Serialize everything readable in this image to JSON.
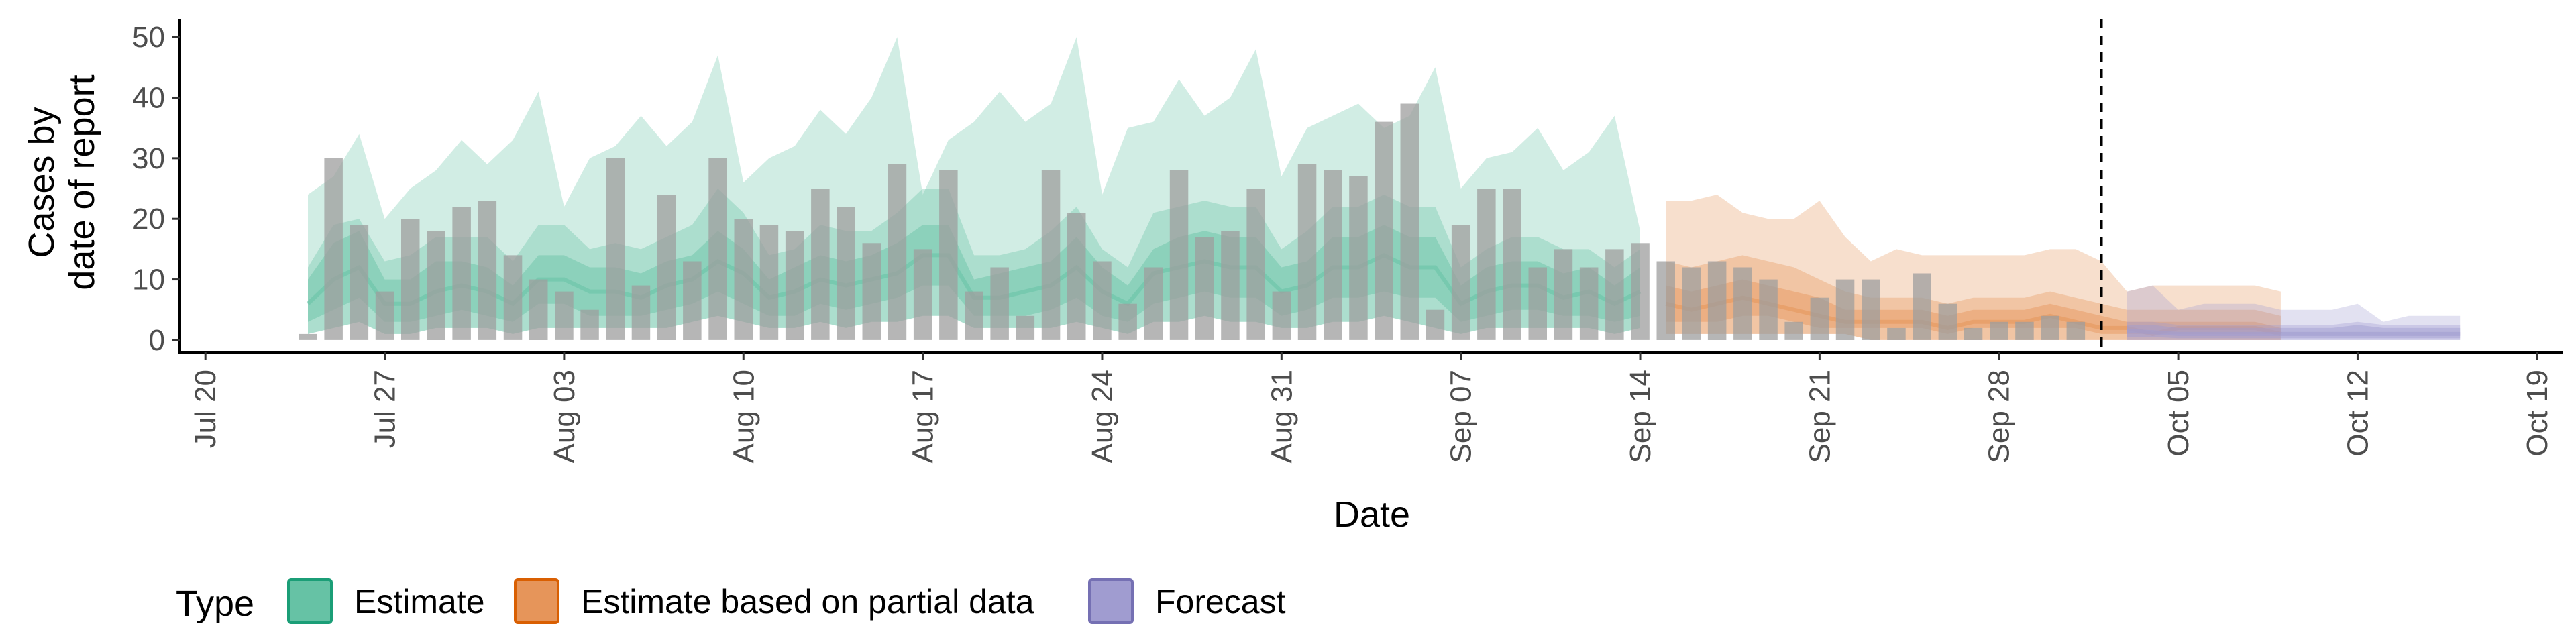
{
  "chart_data": {
    "type": "area",
    "title": "",
    "xlabel": "Date",
    "ylabel_lines": [
      "Cases by",
      "date of report"
    ],
    "x_range": [
      "2020-07-19",
      "2020-10-20"
    ],
    "ylim": [
      -2,
      53
    ],
    "y_ticks": [
      0,
      10,
      20,
      30,
      40,
      50
    ],
    "x_ticks": [
      {
        "date": "2020-07-20",
        "label": "Jul 20"
      },
      {
        "date": "2020-07-27",
        "label": "Jul 27"
      },
      {
        "date": "2020-08-03",
        "label": "Aug 03"
      },
      {
        "date": "2020-08-10",
        "label": "Aug 10"
      },
      {
        "date": "2020-08-17",
        "label": "Aug 17"
      },
      {
        "date": "2020-08-24",
        "label": "Aug 24"
      },
      {
        "date": "2020-08-31",
        "label": "Aug 31"
      },
      {
        "date": "2020-09-07",
        "label": "Sep 07"
      },
      {
        "date": "2020-09-14",
        "label": "Sep 14"
      },
      {
        "date": "2020-09-21",
        "label": "Sep 21"
      },
      {
        "date": "2020-09-28",
        "label": "Sep 28"
      },
      {
        "date": "2020-10-05",
        "label": "Oct 05"
      },
      {
        "date": "2020-10-12",
        "label": "Oct 12"
      },
      {
        "date": "2020-10-19",
        "label": "Oct 19"
      }
    ],
    "grid": false,
    "forecast_date": "2020-10-02",
    "legend": {
      "title": "Type",
      "position": "bottom",
      "entries": [
        {
          "key": "estimate",
          "label": "Estimate",
          "fill": "#66c2a5",
          "stroke": "#1b9e77"
        },
        {
          "key": "partial",
          "label": "Estimate based on partial data",
          "fill": "#e6955a",
          "stroke": "#d95f02"
        },
        {
          "key": "forecast",
          "label": "Forecast",
          "fill": "#a09cd0",
          "stroke": "#7570b3"
        }
      ]
    },
    "bars": {
      "start": "2020-07-24",
      "color": "#9e9e9e",
      "values": [
        1,
        30,
        19,
        8,
        20,
        18,
        22,
        23,
        14,
        10,
        8,
        5,
        30,
        9,
        24,
        13,
        30,
        20,
        19,
        18,
        25,
        22,
        16,
        29,
        15,
        28,
        8,
        12,
        4,
        28,
        21,
        13,
        6,
        12,
        28,
        17,
        18,
        25,
        8,
        29,
        28,
        27,
        36,
        39,
        5,
        19,
        25,
        25,
        12,
        15,
        12,
        15,
        16,
        13,
        12,
        13,
        12,
        10,
        3,
        7,
        10,
        10,
        2,
        11,
        6,
        2,
        3,
        3,
        4,
        3
      ]
    },
    "series": [
      {
        "key": "estimate",
        "start": "2020-07-24",
        "median": [
          6,
          10,
          12,
          6,
          6,
          8,
          9,
          8,
          6,
          10,
          10,
          8,
          8,
          7,
          9,
          10,
          13,
          11,
          7,
          8,
          10,
          9,
          10,
          11,
          14,
          14,
          7,
          7,
          8,
          9,
          12,
          8,
          6,
          11,
          12,
          13,
          12,
          12,
          8,
          9,
          12,
          12,
          14,
          12,
          12,
          6,
          8,
          9,
          9,
          7,
          8,
          6,
          8
        ],
        "inner_low": [
          3,
          5,
          7,
          3,
          3,
          4,
          5,
          4,
          3,
          6,
          6,
          4,
          4,
          4,
          5,
          6,
          8,
          6,
          4,
          4,
          6,
          5,
          6,
          7,
          9,
          9,
          4,
          4,
          4,
          5,
          7,
          4,
          3,
          6,
          7,
          8,
          7,
          7,
          4,
          5,
          7,
          7,
          8,
          7,
          7,
          3,
          4,
          5,
          5,
          4,
          4,
          3,
          4
        ],
        "inner_high": [
          10,
          16,
          18,
          10,
          10,
          13,
          13,
          12,
          9,
          14,
          14,
          12,
          12,
          11,
          13,
          14,
          18,
          15,
          10,
          12,
          14,
          13,
          14,
          16,
          19,
          19,
          10,
          11,
          12,
          13,
          17,
          12,
          9,
          15,
          17,
          18,
          17,
          17,
          12,
          13,
          17,
          17,
          19,
          17,
          17,
          9,
          12,
          13,
          13,
          11,
          12,
          9,
          12
        ],
        "low": [
          1,
          2,
          3,
          1,
          1,
          2,
          2,
          2,
          1,
          2,
          2,
          2,
          2,
          2,
          2,
          3,
          4,
          3,
          2,
          2,
          3,
          2,
          3,
          3,
          4,
          4,
          2,
          2,
          2,
          2,
          3,
          2,
          1,
          3,
          3,
          4,
          3,
          3,
          2,
          2,
          3,
          3,
          4,
          3,
          2,
          1,
          2,
          2,
          2,
          2,
          2,
          1,
          2
        ],
        "mid_high": [
          12,
          19,
          20,
          13,
          14,
          17,
          17,
          17,
          13,
          19,
          19,
          15,
          16,
          15,
          17,
          19,
          25,
          21,
          14,
          15,
          19,
          18,
          18,
          21,
          25,
          25,
          14,
          14,
          15,
          18,
          22,
          15,
          12,
          21,
          22,
          23,
          22,
          22,
          15,
          18,
          22,
          22,
          24,
          22,
          22,
          12,
          15,
          17,
          17,
          15,
          15,
          12,
          15
        ],
        "high": [
          24,
          27,
          34,
          20,
          25,
          28,
          33,
          29,
          33,
          41,
          22,
          30,
          32,
          37,
          32,
          36,
          47,
          26,
          30,
          32,
          38,
          34,
          40,
          50,
          24,
          33,
          36,
          41,
          36,
          39,
          50,
          24,
          35,
          36,
          43,
          37,
          40,
          48,
          27,
          35,
          37,
          39,
          35,
          37,
          45,
          25,
          30,
          31,
          35,
          28,
          31,
          37,
          18
        ]
      },
      {
        "key": "partial",
        "start": "2020-09-15",
        "median": [
          6,
          5,
          6,
          7,
          6,
          5,
          4,
          3,
          3,
          3,
          3,
          2,
          3,
          3,
          3,
          4,
          3,
          2,
          2,
          1,
          2,
          2,
          2,
          2,
          1
        ],
        "inner_low": [
          3,
          3,
          3,
          4,
          4,
          3,
          2,
          2,
          2,
          2,
          2,
          1,
          2,
          2,
          2,
          2,
          2,
          1,
          1,
          1,
          1,
          1,
          1,
          1,
          1
        ],
        "inner_high": [
          9,
          8,
          9,
          10,
          9,
          8,
          7,
          5,
          5,
          5,
          5,
          4,
          5,
          5,
          5,
          6,
          5,
          4,
          3,
          3,
          3,
          3,
          3,
          3,
          2
        ],
        "low": [
          1,
          1,
          1,
          1,
          1,
          1,
          1,
          1,
          0,
          0,
          0,
          0,
          0,
          0,
          0,
          0,
          0,
          0,
          0,
          0,
          0,
          0,
          0,
          0,
          0
        ],
        "mid_high": [
          13,
          12,
          13,
          14,
          13,
          12,
          10,
          8,
          7,
          7,
          7,
          6,
          7,
          7,
          7,
          8,
          7,
          6,
          5,
          5,
          5,
          5,
          5,
          5,
          4
        ],
        "high": [
          23,
          23,
          24,
          21,
          20,
          20,
          23,
          17,
          13,
          15,
          14,
          14,
          14,
          14,
          14,
          15,
          15,
          13,
          8,
          9,
          9,
          9,
          9,
          9,
          8
        ]
      },
      {
        "key": "forecast",
        "start": "2020-10-03",
        "median": [
          1.5,
          1.3,
          1,
          1,
          1,
          1,
          1,
          1,
          1,
          1,
          1,
          1,
          1,
          1
        ],
        "inner_low": [
          0.5,
          0.5,
          0.3,
          0.3,
          0.3,
          0.3,
          0.3,
          0.3,
          0.3,
          0.3,
          0.3,
          0.3,
          0.3,
          0.3
        ],
        "inner_high": [
          2.5,
          2.5,
          2,
          2,
          2,
          2,
          2,
          2,
          2,
          2.5,
          2,
          2,
          2,
          2
        ],
        "low": [
          0,
          0,
          0,
          0,
          0,
          0,
          0,
          0,
          0,
          0,
          0,
          0,
          0,
          0
        ],
        "mid_high": [
          3,
          3,
          2.5,
          2.5,
          2.5,
          2.5,
          2.5,
          2.5,
          2.5,
          3,
          2.5,
          2.5,
          2.5,
          2.5
        ],
        "high": [
          8,
          9,
          5,
          6,
          6,
          6,
          5,
          5,
          5,
          6,
          3,
          4,
          4,
          4
        ]
      }
    ]
  }
}
